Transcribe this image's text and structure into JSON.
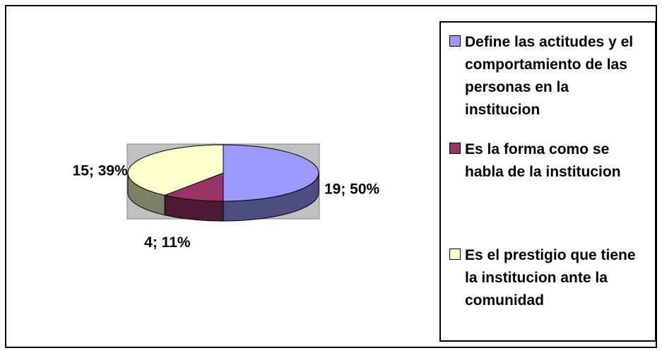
{
  "chart_data": {
    "type": "pie",
    "categories": [
      "Define las actitudes y el comportamiento de las personas en la institucion",
      "Es la forma como se habla de la institucion",
      "Es el prestigio que tiene la institucion ante la comunidad"
    ],
    "values": [
      19,
      4,
      15
    ],
    "value_labels": [
      "19; 50%",
      "4; 11%",
      "15; 39%"
    ],
    "colors": [
      "#9999ff",
      "#993366",
      "#ffffcc"
    ],
    "legend": "right"
  }
}
